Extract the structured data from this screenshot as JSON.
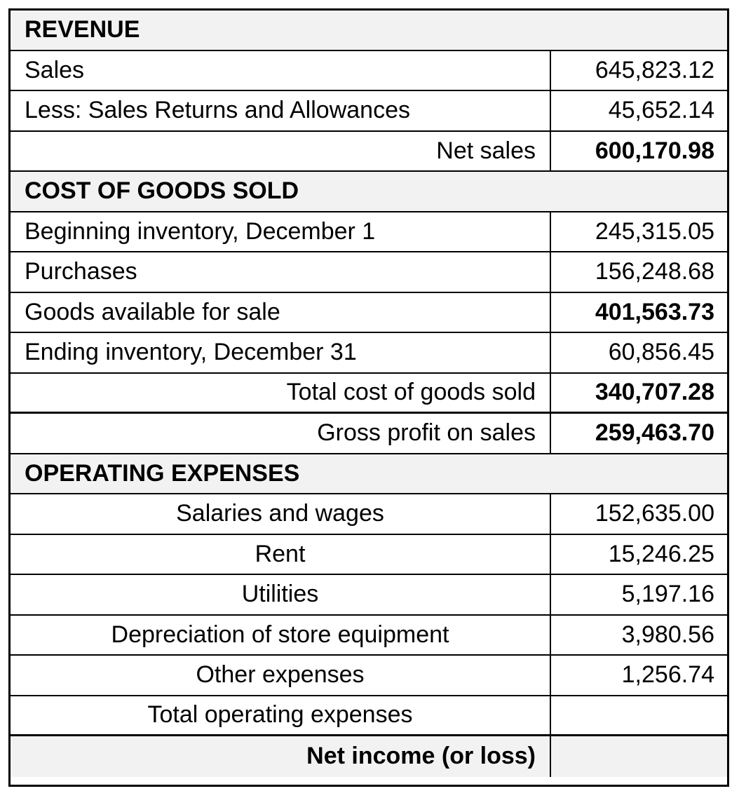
{
  "revenue": {
    "title": "REVENUE",
    "sales": {
      "label": "Sales",
      "value": "645,823.12"
    },
    "returns": {
      "label": "Less: Sales Returns and Allowances",
      "value": "45,652.14"
    },
    "net_sales": {
      "label": "Net sales",
      "value": "600,170.98"
    }
  },
  "cogs": {
    "title": "COST OF GOODS SOLD",
    "beginning": {
      "label": "Beginning inventory, December 1",
      "value": "245,315.05"
    },
    "purchases": {
      "label": "Purchases",
      "value": "156,248.68"
    },
    "available": {
      "label": "Goods available for sale",
      "value": "401,563.73"
    },
    "ending": {
      "label": "Ending inventory, December 31",
      "value": "60,856.45"
    },
    "total": {
      "label": "Total cost of goods sold",
      "value": "340,707.28"
    }
  },
  "gross_profit": {
    "label": "Gross profit on sales",
    "value": "259,463.70"
  },
  "opex": {
    "title": "OPERATING EXPENSES",
    "salaries": {
      "label": "Salaries and wages",
      "value": "152,635.00"
    },
    "rent": {
      "label": "Rent",
      "value": "15,246.25"
    },
    "utilities": {
      "label": "Utilities",
      "value": "5,197.16"
    },
    "depreciation": {
      "label": "Depreciation of store equipment",
      "value": "3,980.56"
    },
    "other": {
      "label": "Other expenses",
      "value": "1,256.74"
    },
    "total": {
      "label": "Total operating expenses",
      "value": ""
    }
  },
  "net_income": {
    "label": "Net income (or loss)",
    "value": ""
  }
}
